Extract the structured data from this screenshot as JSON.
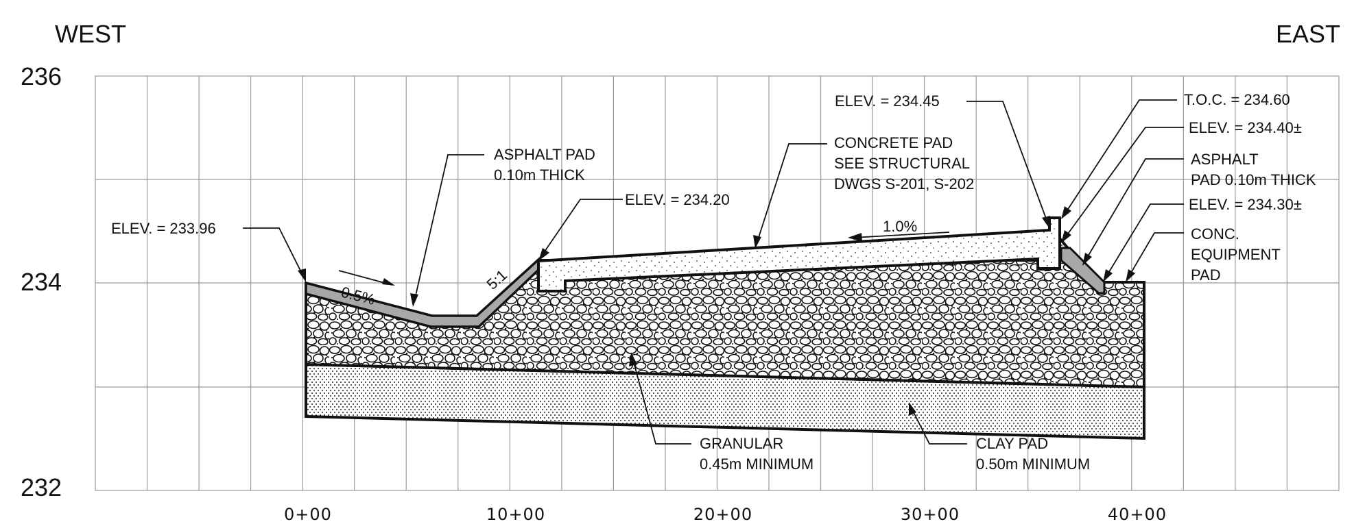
{
  "directions": {
    "west": "WEST",
    "east": "EAST"
  },
  "y_axis": {
    "ticks": [
      "236",
      "234",
      "232"
    ]
  },
  "x_axis": {
    "ticks": [
      "0+00",
      "10+00",
      "20+00",
      "30+00",
      "40+00"
    ]
  },
  "slope_labels": {
    "west_slope": "0.5%",
    "ramp": "5:1",
    "pad_slope": "1.0%"
  },
  "callouts": {
    "elev_west": "ELEV. = 233.96",
    "asphalt_pad": [
      "ASPHALT PAD",
      "0.10m THICK"
    ],
    "elev_ramp_top": "ELEV. = 234.20",
    "concrete_pad": [
      "CONCRETE PAD",
      "SEE STRUCTURAL",
      "DWGS S-201, S-202"
    ],
    "elev_pad_top": "ELEV. = 234.45",
    "toc": "T.O.C. = 234.60",
    "elev_east_top": "ELEV. = 234.40±",
    "asphalt_east": [
      "ASPHALT",
      "PAD 0.10m THICK"
    ],
    "elev_east_low": "ELEV. = 234.30±",
    "conc_equipment": [
      "CONC.",
      "EQUIPMENT",
      "PAD"
    ],
    "granular": [
      "GRANULAR",
      "0.45m MINIMUM"
    ],
    "clay": [
      "CLAY PAD",
      "0.50m MINIMUM"
    ]
  },
  "colors": {
    "grid": "#9a9a9a",
    "asphalt": "#a8a8a8",
    "outline": "#111111"
  }
}
